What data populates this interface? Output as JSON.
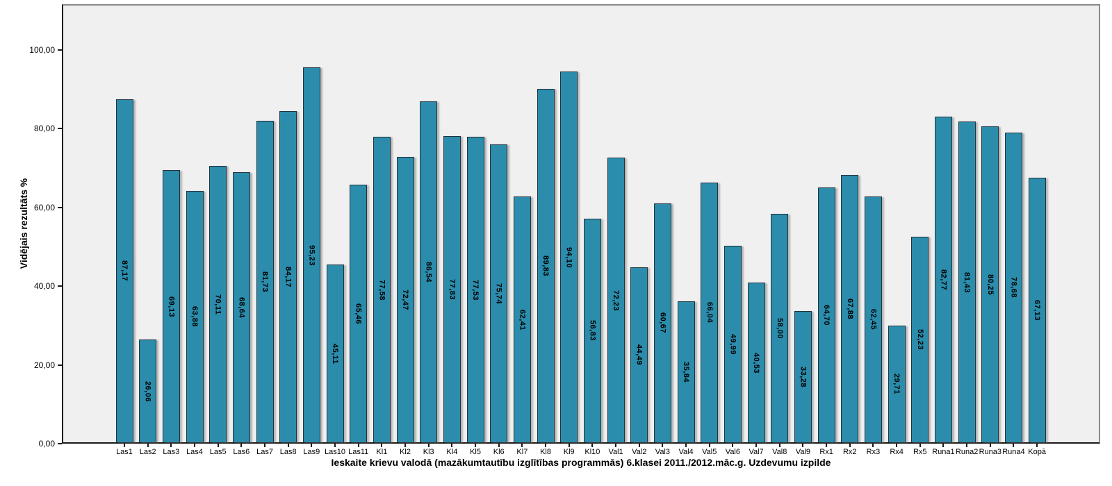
{
  "chart_data": {
    "type": "bar",
    "title": "Ieskaite krievu valodā (mazākumtautību izglītības programmās) 6.klasei 2011./2012.māc.g. Uzdevumu izpilde",
    "xlabel": "",
    "ylabel": "Vidējais rezultāts %",
    "ylim": [
      0,
      111
    ],
    "grid": false,
    "legend_position": "none",
    "bar_color": "#2b8cab",
    "plot_background": "#f0f0f0",
    "yticks": [
      0,
      20,
      40,
      60,
      80,
      100
    ],
    "ytick_labels": [
      "0,00",
      "20,00",
      "40,00",
      "60,00",
      "80,00",
      "100,00"
    ],
    "categories": [
      "Las1",
      "Las2",
      "Las3",
      "Las4",
      "Las5",
      "Las6",
      "Las7",
      "Las8",
      "Las9",
      "Las10",
      "Las11",
      "Kl1",
      "Kl2",
      "Kl3",
      "Kl4",
      "Kl5",
      "Kl6",
      "Kl7",
      "Kl8",
      "Kl9",
      "Kl10",
      "Val1",
      "Val2",
      "Val3",
      "Val4",
      "Val5",
      "Val6",
      "Val7",
      "Val8",
      "Val9",
      "Rx1",
      "Rx2",
      "Rx3",
      "Rx4",
      "Rx5",
      "Runa1",
      "Runa2",
      "Runa3",
      "Runa4",
      "Kopā"
    ],
    "values": [
      87.17,
      26.06,
      69.13,
      63.88,
      70.11,
      68.64,
      81.73,
      84.17,
      95.23,
      45.11,
      65.46,
      77.58,
      72.47,
      86.54,
      77.83,
      77.53,
      75.74,
      62.41,
      89.83,
      94.1,
      56.83,
      72.23,
      44.49,
      60.67,
      35.84,
      66.04,
      49.99,
      40.53,
      58.0,
      33.28,
      64.7,
      67.88,
      62.45,
      29.71,
      52.23,
      82.77,
      81.43,
      80.25,
      78.68,
      67.13
    ],
    "value_labels": [
      "87,17",
      "26,06",
      "69,13",
      "63,88",
      "70,11",
      "68,64",
      "81,73",
      "84,17",
      "95,23",
      "45,11",
      "65,46",
      "77,58",
      "72,47",
      "86,54",
      "77,83",
      "77,53",
      "75,74",
      "62,41",
      "89,83",
      "94,10",
      "56,83",
      "72,23",
      "44,49",
      "60,67",
      "35,84",
      "66,04",
      "49,99",
      "40,53",
      "58,00",
      "33,28",
      "64,70",
      "67,88",
      "62,45",
      "29,71",
      "52,23",
      "82,77",
      "81,43",
      "80,25",
      "78,68",
      "67,13"
    ]
  }
}
